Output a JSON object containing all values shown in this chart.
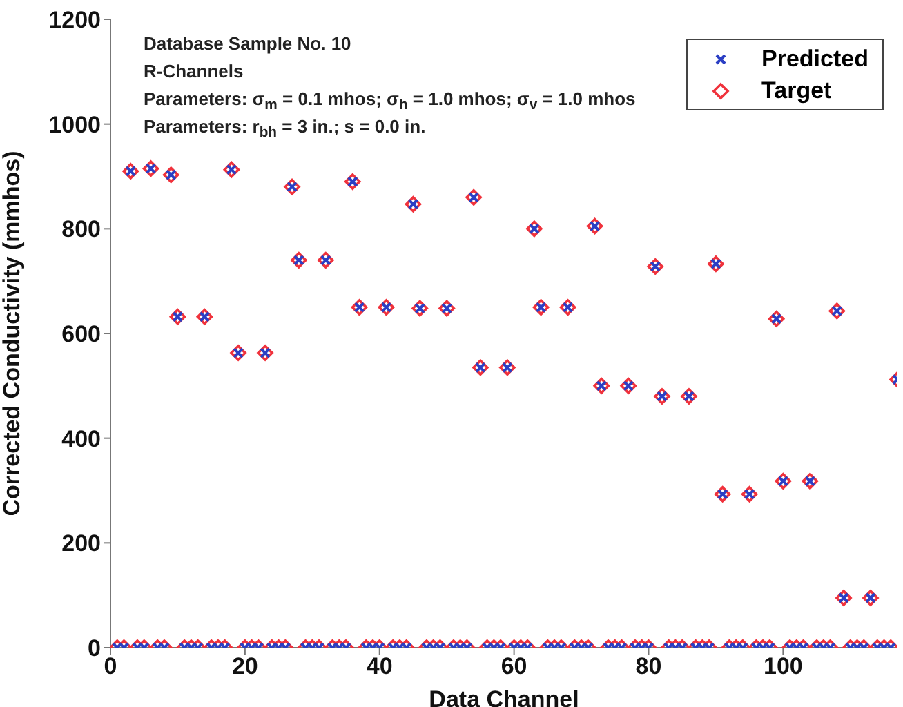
{
  "chart_data": {
    "type": "scatter",
    "xlabel": "Data Channel",
    "ylabel": "Corrected Conductivity (mmhos)",
    "annotations": [
      "Database Sample No. 10",
      "R-Channels",
      "Parameters: σ$_{m}$ = 0.1 mhos; σ$_{h}$ = 1.0 mhos; σ$_{v}$ = 1.0 mhos",
      "Parameters: r$_{bh}$ = 3 in.; s = 0.0 in."
    ],
    "x": [
      1,
      2,
      3,
      4,
      5,
      6,
      7,
      8,
      9,
      10,
      11,
      12,
      13,
      14,
      15,
      16,
      17,
      18,
      19,
      20,
      21,
      22,
      23,
      24,
      25,
      26,
      27,
      28,
      29,
      30,
      31,
      32,
      33,
      34,
      35,
      36,
      37,
      38,
      39,
      40,
      41,
      42,
      43,
      44,
      45,
      46,
      47,
      48,
      49,
      50,
      51,
      52,
      53,
      54,
      55,
      56,
      57,
      58,
      59,
      60,
      61,
      62,
      63,
      64,
      65,
      66,
      67,
      68,
      69,
      70,
      71,
      72,
      73,
      74,
      75,
      76,
      77,
      78,
      79,
      80,
      81,
      82,
      83,
      84,
      85,
      86,
      87,
      88,
      89,
      90,
      91,
      92,
      93,
      94,
      95,
      96,
      97,
      98,
      99,
      100,
      101,
      102,
      103,
      104,
      105,
      106,
      107,
      108,
      109,
      110,
      111,
      112,
      113,
      114,
      115,
      116,
      117
    ],
    "series": [
      {
        "name": "Predicted",
        "color": "#2b3fc4",
        "marker": "cross",
        "values": [
          0,
          0,
          910,
          0,
          0,
          915,
          0,
          0,
          903,
          632,
          0,
          0,
          0,
          632,
          0,
          0,
          0,
          913,
          563,
          0,
          0,
          0,
          563,
          0,
          0,
          0,
          880,
          740,
          0,
          0,
          0,
          740,
          0,
          0,
          0,
          890,
          650,
          0,
          0,
          0,
          650,
          0,
          0,
          0,
          847,
          648,
          0,
          0,
          0,
          648,
          0,
          0,
          0,
          860,
          535,
          0,
          0,
          0,
          535,
          0,
          0,
          0,
          800,
          650,
          0,
          0,
          0,
          650,
          0,
          0,
          0,
          805,
          500,
          0,
          0,
          0,
          500,
          0,
          0,
          0,
          728,
          480,
          0,
          0,
          0,
          480,
          0,
          0,
          0,
          733,
          293,
          0,
          0,
          0,
          293,
          0,
          0,
          0,
          628,
          318,
          0,
          0,
          0,
          318,
          0,
          0,
          0,
          643,
          95,
          0,
          0,
          0,
          95,
          0,
          0,
          0,
          512
        ]
      },
      {
        "name": "Target",
        "color": "#f0323c",
        "marker": "diamond",
        "values": [
          0,
          0,
          910,
          0,
          0,
          915,
          0,
          0,
          903,
          632,
          0,
          0,
          0,
          632,
          0,
          0,
          0,
          913,
          563,
          0,
          0,
          0,
          563,
          0,
          0,
          0,
          880,
          740,
          0,
          0,
          0,
          740,
          0,
          0,
          0,
          890,
          650,
          0,
          0,
          0,
          650,
          0,
          0,
          0,
          847,
          648,
          0,
          0,
          0,
          648,
          0,
          0,
          0,
          860,
          535,
          0,
          0,
          0,
          535,
          0,
          0,
          0,
          800,
          650,
          0,
          0,
          0,
          650,
          0,
          0,
          0,
          805,
          500,
          0,
          0,
          0,
          500,
          0,
          0,
          0,
          728,
          480,
          0,
          0,
          0,
          480,
          0,
          0,
          0,
          733,
          293,
          0,
          0,
          0,
          293,
          0,
          0,
          0,
          628,
          318,
          0,
          0,
          0,
          318,
          0,
          0,
          0,
          643,
          95,
          0,
          0,
          0,
          95,
          0,
          0,
          0,
          512
        ]
      }
    ],
    "xlim": [
      0,
      117
    ],
    "xticks": [
      0,
      20,
      40,
      60,
      80,
      100
    ],
    "ylim": [
      0,
      1200
    ],
    "yticks": [
      0,
      200,
      400,
      600,
      800,
      1000,
      1200
    ],
    "grid": false,
    "legend": "top right"
  }
}
